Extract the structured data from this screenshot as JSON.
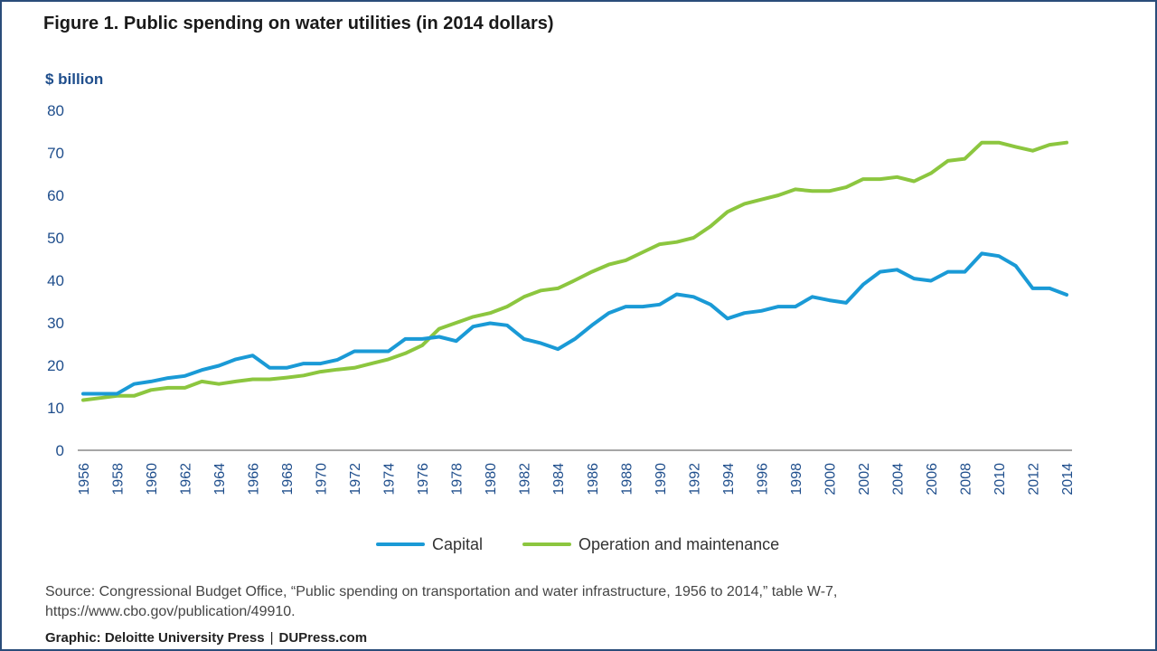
{
  "title": "Figure 1. Public spending on water utilities (in 2014 dollars)",
  "unit_label": "$ billion",
  "source_line1": "Source: Congressional Budget Office, “Public spending on transportation and water infrastructure, 1956 to 2014,” table W-7,",
  "source_line2": "https://www.cbo.gov/publication/49910.",
  "credit_label": "Graphic: Deloitte University Press",
  "credit_sep": "|",
  "credit_site": "DUPress.com",
  "colors": {
    "capital": "#1a9ad6",
    "om": "#8cc63f",
    "axis_text": "#1f4e8c",
    "axis_line": "#888888"
  },
  "chart_data": {
    "type": "line",
    "title": "Figure 1. Public spending on water utilities (in 2014 dollars)",
    "ylabel": "$ billion",
    "xlabel": "",
    "ylim": [
      0,
      80
    ],
    "yticks": [
      0,
      10,
      20,
      30,
      40,
      50,
      60,
      70,
      80
    ],
    "xticks": [
      "1956",
      "1958",
      "1960",
      "1962",
      "1964",
      "1966",
      "1968",
      "1970",
      "1972",
      "1974",
      "1976",
      "1978",
      "1980",
      "1982",
      "1984",
      "1986",
      "1988",
      "1990",
      "1992",
      "1994",
      "1996",
      "1998",
      "2000",
      "2002",
      "2004",
      "2006",
      "2008",
      "2010",
      "2012",
      "2014"
    ],
    "x": [
      1956,
      1957,
      1958,
      1959,
      1960,
      1961,
      1962,
      1963,
      1964,
      1965,
      1966,
      1967,
      1968,
      1969,
      1970,
      1971,
      1972,
      1973,
      1974,
      1975,
      1976,
      1977,
      1978,
      1979,
      1980,
      1981,
      1982,
      1983,
      1984,
      1985,
      1986,
      1987,
      1988,
      1989,
      1990,
      1991,
      1992,
      1993,
      1994,
      1995,
      1996,
      1997,
      1998,
      1999,
      2000,
      2001,
      2002,
      2003,
      2004,
      2005,
      2006,
      2007,
      2008,
      2009,
      2010,
      2011,
      2012,
      2013,
      2014
    ],
    "grid": false,
    "legend_position": "bottom",
    "series": [
      {
        "name": "Capital",
        "values": [
          13.3,
          13.3,
          13.3,
          15.6,
          16.2,
          17,
          17.5,
          18.9,
          19.9,
          21.4,
          22.3,
          19.4,
          19.4,
          20.4,
          20.4,
          21.3,
          23.3,
          23.3,
          23.3,
          26.2,
          26.2,
          26.7,
          25.7,
          29.1,
          29.9,
          29.4,
          26.2,
          25.2,
          23.8,
          26.2,
          29.4,
          32.3,
          33.8,
          33.8,
          34.3,
          36.7,
          36.1,
          34.3,
          31,
          32.3,
          32.8,
          33.8,
          33.8,
          36.1,
          35.3,
          34.7,
          39,
          42,
          42.5,
          40.4,
          39.9,
          42,
          42,
          46.3,
          45.7,
          43.4,
          38.1,
          38.1,
          36.6
        ]
      },
      {
        "name": "Operation and maintenance",
        "values": [
          11.8,
          12.3,
          12.8,
          12.8,
          14.2,
          14.7,
          14.7,
          16.2,
          15.6,
          16.2,
          16.7,
          16.7,
          17.1,
          17.6,
          18.5,
          19,
          19.4,
          20.4,
          21.4,
          22.8,
          24.7,
          28.6,
          30,
          31.4,
          32.3,
          33.8,
          36.1,
          37.6,
          38.1,
          40,
          42,
          43.7,
          44.7,
          46.6,
          48.5,
          49,
          50,
          52.7,
          56.1,
          58,
          59,
          60,
          61.4,
          61,
          61,
          61.9,
          63.8,
          63.8,
          64.3,
          63.3,
          65.2,
          68.1,
          68.6,
          72.4,
          72.4,
          71.4,
          70.5,
          71.9,
          72.4
        ]
      }
    ]
  }
}
